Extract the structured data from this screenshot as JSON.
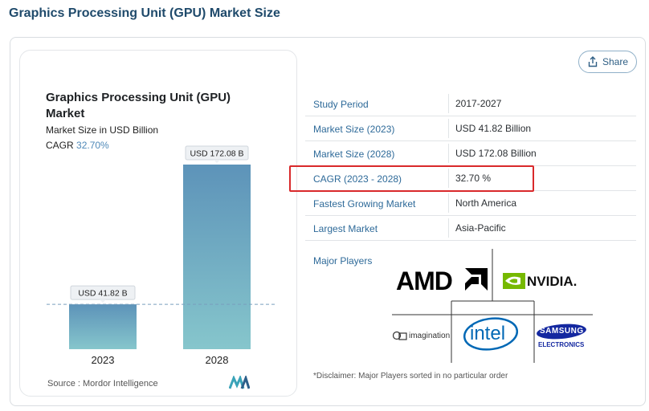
{
  "page": {
    "title": "Graphics Processing Unit (GPU) Market Size"
  },
  "share": {
    "label": "Share"
  },
  "chart_card": {
    "title": "Graphics Processing Unit (GPU) Market",
    "subtitle": "Market Size in USD Billion",
    "cagr_label": "CAGR",
    "cagr_value": "32.70%",
    "source": "Source :  Mordor Intelligence"
  },
  "chart_data": {
    "type": "bar",
    "title": "Graphics Processing Unit (GPU) Market",
    "ylabel": "Market Size in USD Billion",
    "categories": [
      "2023",
      "2028"
    ],
    "values": [
      41.82,
      172.08
    ],
    "data_labels": [
      "USD 41.82 B",
      "USD 172.08 B"
    ],
    "ylim": [
      0,
      200
    ],
    "colors": {
      "bar_top": "#5d93b9",
      "bar_bottom": "#86c6cc",
      "reference_line": "#7a9fbd"
    }
  },
  "table": {
    "rows": [
      {
        "key": "Study Period",
        "value": "2017-2027"
      },
      {
        "key": "Market Size (2023)",
        "value": "USD 41.82 Billion"
      },
      {
        "key": "Market Size (2028)",
        "value": "USD 172.08 Billion"
      },
      {
        "key": "CAGR (2023 - 2028)",
        "value": "32.70 %"
      },
      {
        "key": "Fastest Growing Market",
        "value": "North America"
      },
      {
        "key": "Largest Market",
        "value": "Asia-Pacific"
      }
    ]
  },
  "players": {
    "label": "Major Players",
    "logos": {
      "amd": "AMD",
      "nvidia": "NVIDIA.",
      "imagination": "imagination",
      "intel": "intel",
      "samsung": "SAMSUNG",
      "samsung_sub": "ELECTRONICS"
    },
    "disclaimer": "*Disclaimer: Major Players sorted in no particular order"
  },
  "colors": {
    "brand": "#1f4a6b",
    "link": "#2e6a99",
    "highlight": "#d9292b",
    "nvidia_green": "#76b900",
    "intel_blue": "#0068b5",
    "samsung_blue": "#1428a0"
  }
}
